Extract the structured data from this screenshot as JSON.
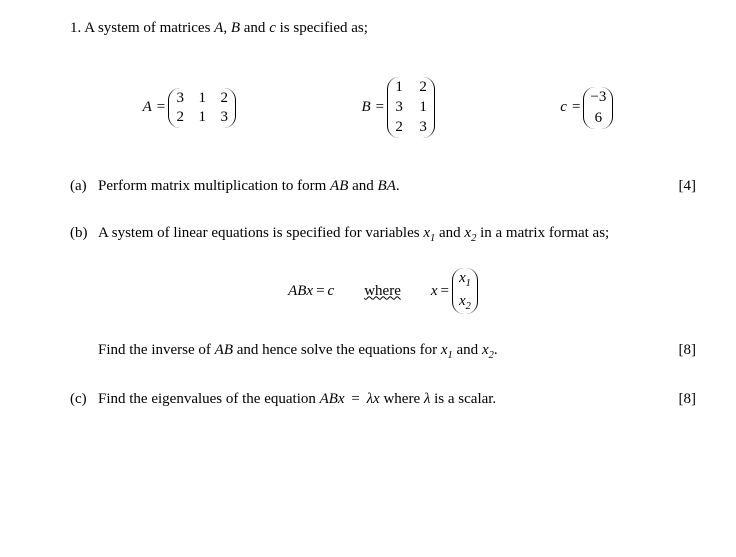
{
  "question": {
    "number": "1.",
    "intro": "A system of matrices A, B and c is specified as;"
  },
  "matA": {
    "label": "A",
    "r0c0": "3",
    "r0c1": "1",
    "r0c2": "2",
    "r1c0": "2",
    "r1c1": "1",
    "r1c2": "3"
  },
  "matB": {
    "label": "B",
    "r0c0": "1",
    "r0c1": "2",
    "r1c0": "3",
    "r1c1": "1",
    "r2c0": "2",
    "r2c1": "3"
  },
  "matC": {
    "label": "c",
    "r0": "−3",
    "r1": "6"
  },
  "partA": {
    "label": "(a)",
    "text_before": "Perform matrix multiplication to form ",
    "ab": "AB",
    "and": " and ",
    "ba": "BA",
    "period": ".",
    "marks": "[4]"
  },
  "partB": {
    "label": "(b)",
    "text_before": "A system of linear equations is specified for variables ",
    "x1": "x",
    "s1": "1",
    "and": " and ",
    "x2": "x",
    "s2": "2",
    "after": " in a matrix format as;",
    "eq_lhs": "ABx",
    "eq_eq": " = ",
    "eq_rhs": "c",
    "where": "where",
    "xdef_lhs": "x",
    "xdef_eq": " = ",
    "xrow0_var": "x",
    "xrow0_sub": "1",
    "xrow1_var": "x",
    "xrow1_sub": "2",
    "find_before": "Find the inverse of ",
    "find_ab": "AB",
    "find_mid": " and hence solve the equations for ",
    "fx1": "x",
    "fs1": "1",
    "find_and": " and ",
    "fx2": "x",
    "fs2": "2",
    "find_period": ".",
    "marks": "[8]"
  },
  "partC": {
    "label": "(c)",
    "text_before": "Find the eigenvalues of the equation ",
    "eq_abx": "ABx",
    "eq_eq": " = ",
    "eq_lambda": "λx",
    "after": " where ",
    "lambda": "λ",
    "after2": " is a scalar.",
    "marks": "[8]"
  }
}
